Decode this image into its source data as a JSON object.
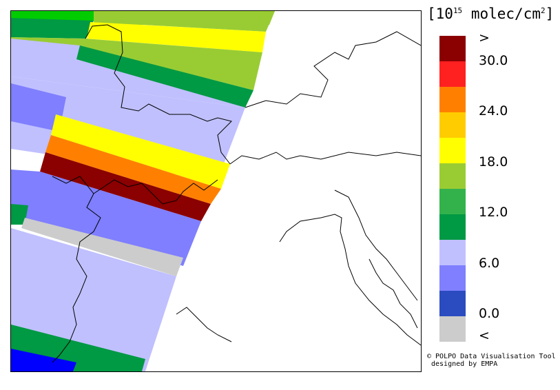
{
  "legend": {
    "unit_prefix": "[10",
    "unit_exp": "15",
    "unit_suffix": " molec/cm",
    "unit_sq": "2",
    "unit_close": "]",
    "colors": [
      "#8b0000",
      "#ff2020",
      "#ff8000",
      "#ffcc00",
      "#ffff00",
      "#99cc33",
      "#33b24c",
      "#009944",
      "#c0c0ff",
      "#7f7fff",
      "#2b4cc0",
      "#cccccc"
    ],
    "ticks": [
      ">",
      "30.0",
      "24.0",
      "18.0",
      "12.0",
      "6.0",
      "0.0",
      "<"
    ]
  },
  "credit": {
    "line1": "© POLPO Data Visualisation Tool",
    "line2": "designed by EMPA"
  }
}
